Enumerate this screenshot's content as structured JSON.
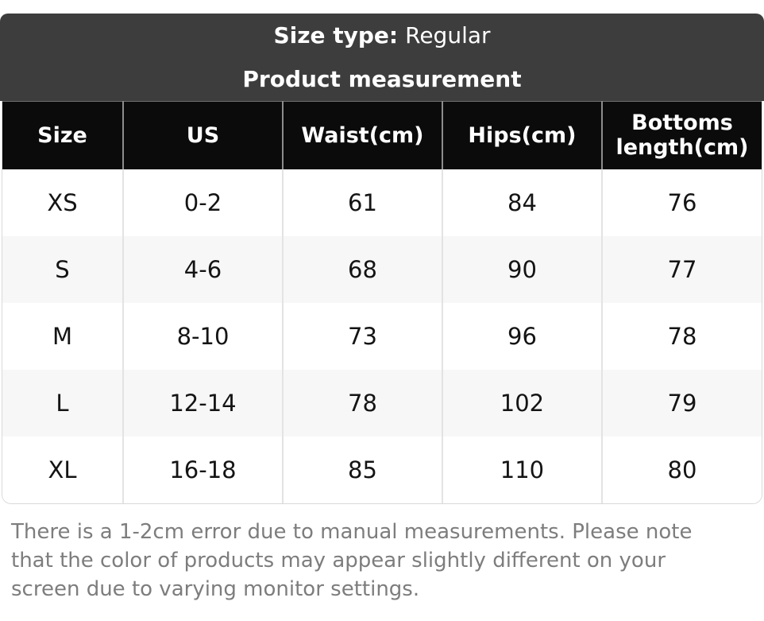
{
  "banner": {
    "size_type_label": "Size type:",
    "size_type_value": "Regular",
    "title": "Product measurement"
  },
  "chart_data": {
    "type": "table",
    "title": "Product measurement",
    "size_type": "Regular",
    "columns": [
      "Size",
      "US",
      "Waist(cm)",
      "Hips(cm)",
      "Bottoms length(cm)"
    ],
    "rows": [
      [
        "XS",
        "0-2",
        "61",
        "84",
        "76"
      ],
      [
        "S",
        "4-6",
        "68",
        "90",
        "77"
      ],
      [
        "M",
        "8-10",
        "73",
        "96",
        "78"
      ],
      [
        "L",
        "12-14",
        "78",
        "102",
        "79"
      ],
      [
        "XL",
        "16-18",
        "85",
        "110",
        "80"
      ]
    ]
  },
  "footer": {
    "note": "There is a 1-2cm error due to manual measurements. Please note that the color of products may appear slightly different on your screen due to varying monitor settings."
  },
  "colors": {
    "banner_bg": "#3d3d3d",
    "table_header_bg": "#0b0b0b",
    "row_alt_bg": "#f7f7f7",
    "note_text": "#7d7d7d"
  }
}
